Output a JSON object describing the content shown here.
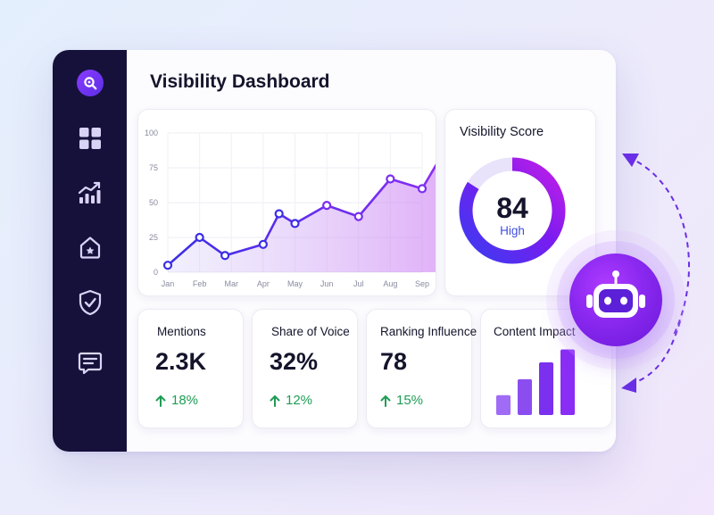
{
  "title": "Visibility Dashboard",
  "sidebar": {
    "logo": "search-logo-icon",
    "items": [
      {
        "icon": "grid-icon"
      },
      {
        "icon": "chart-trend-icon"
      },
      {
        "icon": "home-icon"
      },
      {
        "icon": "shield-check-icon"
      },
      {
        "icon": "message-icon"
      }
    ]
  },
  "chart_data": [
    {
      "type": "area",
      "categories": [
        "Jan",
        "Feb",
        "Mar",
        "Apr",
        "May",
        "Jun",
        "Jul",
        "Aug",
        "Sep"
      ],
      "series": [
        {
          "values": [
            5,
            25,
            12,
            20,
            42,
            35,
            48,
            40,
            67,
            60,
            91
          ]
        }
      ],
      "x": [
        0,
        1,
        1.8,
        3,
        3.5,
        4,
        5,
        6,
        7,
        8,
        8.8
      ],
      "yticks": [
        "0",
        "25",
        "50",
        "75",
        "100"
      ],
      "ylim": [
        0,
        100
      ],
      "grid": true,
      "color": "#3b2ee6"
    },
    {
      "type": "bar",
      "title": "Content Impact",
      "values": [
        20,
        36,
        53,
        66
      ],
      "ylim": [
        0,
        70
      ],
      "colors": [
        "#a06bf5",
        "#8c4df0",
        "#7a30ee",
        "#8a2ef5"
      ]
    }
  ],
  "score": {
    "title": "Visibility Score",
    "value": "84",
    "label": "High",
    "percent": 84,
    "colors": [
      "#3b3cf0",
      "#7a1cf0",
      "#c21fe6"
    ]
  },
  "metrics": [
    {
      "label": "Mentions",
      "value": "2.3K",
      "trend": "18%"
    },
    {
      "label": "Share of Voice",
      "value": "32%",
      "trend": "12%"
    },
    {
      "label": "Ranking Influence",
      "value": "78",
      "trend": "15%"
    }
  ],
  "colors": {
    "sidebar": "#16113b",
    "accent": "#6a2ee6",
    "positive": "#1f9d55"
  },
  "assistant": {
    "icon": "robot-icon"
  }
}
